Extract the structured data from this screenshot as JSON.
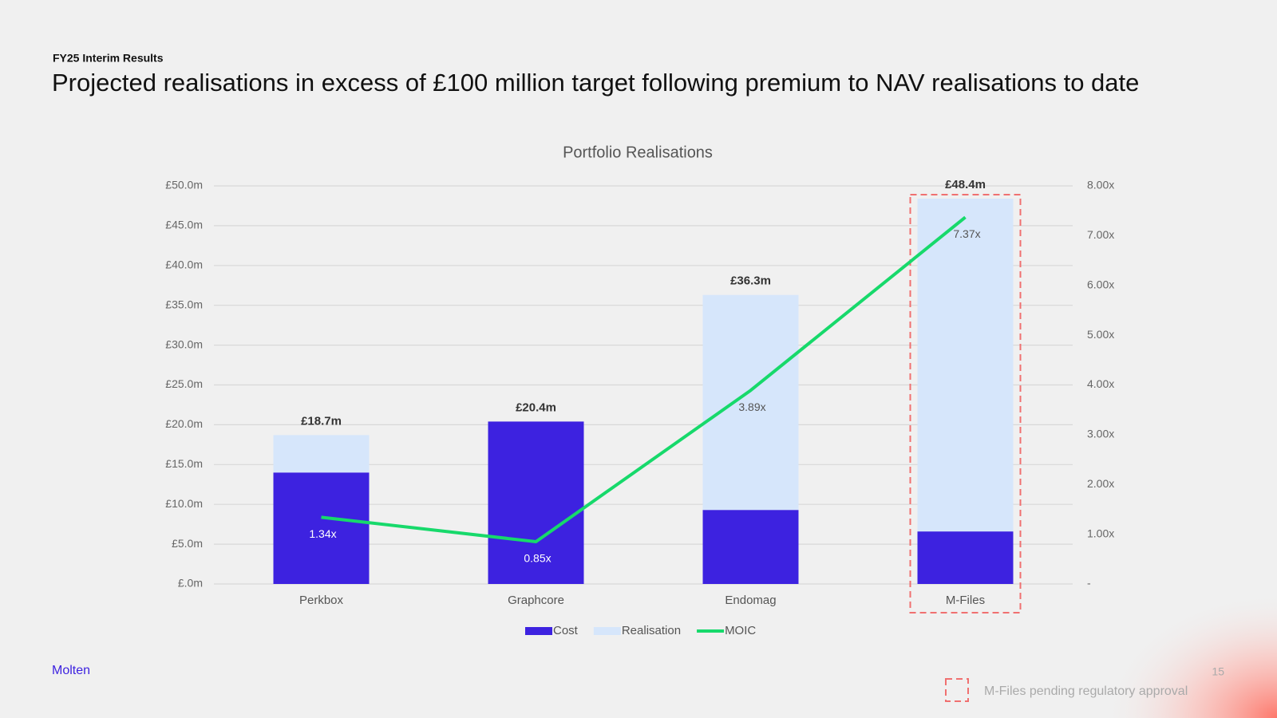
{
  "header": "FY25 Interim Results",
  "title": "Projected realisations in excess of £100 million target following premium to NAV realisations to date",
  "footer": {
    "brand": "Molten",
    "page": "15",
    "note": "M-Files pending regulatory approval"
  },
  "chart_data": {
    "type": "bar",
    "title": "Portfolio Realisations",
    "categories": [
      "Perkbox",
      "Graphcore",
      "Endomag",
      "M-Files"
    ],
    "series": [
      {
        "name": "Cost",
        "color": "#3d22e0",
        "values": [
          14.0,
          20.4,
          9.3,
          6.6
        ]
      },
      {
        "name": "Realisation",
        "color": "#d6e6fb",
        "values": [
          4.7,
          0,
          27.0,
          41.8
        ]
      },
      {
        "name": "MOIC",
        "color": "#17d96b",
        "type": "line",
        "axis": "y2",
        "values": [
          1.34,
          0.85,
          3.89,
          7.37
        ],
        "value_labels": [
          "1.34x",
          "0.85x",
          "3.89x",
          "7.37x"
        ]
      }
    ],
    "totals": [
      18.7,
      20.4,
      36.3,
      48.4
    ],
    "total_labels": [
      "£18.7m",
      "£20.4m",
      "£36.3m",
      "£48.4m"
    ],
    "ylim": [
      0,
      50
    ],
    "yticks": [
      {
        "value": 0,
        "label": "£.0m"
      },
      {
        "value": 5,
        "label": "£5.0m"
      },
      {
        "value": 10,
        "label": "£10.0m"
      },
      {
        "value": 15,
        "label": "£15.0m"
      },
      {
        "value": 20,
        "label": "£20.0m"
      },
      {
        "value": 25,
        "label": "£25.0m"
      },
      {
        "value": 30,
        "label": "£30.0m"
      },
      {
        "value": 35,
        "label": "£35.0m"
      },
      {
        "value": 40,
        "label": "£40.0m"
      },
      {
        "value": 45,
        "label": "£45.0m"
      },
      {
        "value": 50,
        "label": "£50.0m"
      }
    ],
    "y2lim": [
      0,
      8
    ],
    "y2ticks": [
      {
        "value": 0,
        "label": "-"
      },
      {
        "value": 1,
        "label": "1.00x"
      },
      {
        "value": 2,
        "label": "2.00x"
      },
      {
        "value": 3,
        "label": "3.00x"
      },
      {
        "value": 4,
        "label": "4.00x"
      },
      {
        "value": 5,
        "label": "5.00x"
      },
      {
        "value": 6,
        "label": "6.00x"
      },
      {
        "value": 7,
        "label": "7.00x"
      },
      {
        "value": 8,
        "label": "8.00x"
      }
    ],
    "grid": true,
    "legend": "bottom"
  }
}
